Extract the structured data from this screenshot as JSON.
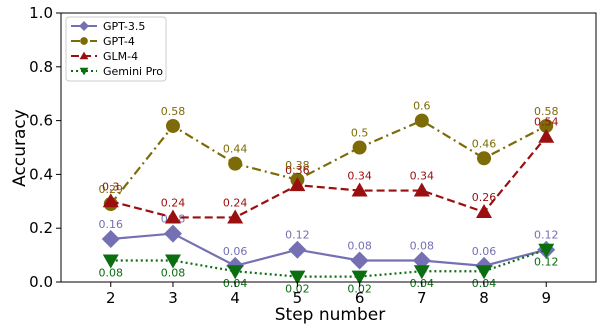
{
  "chart_data": {
    "type": "line",
    "title": "",
    "xlabel": "Step number",
    "ylabel": "Accuracy",
    "x": [
      2,
      3,
      4,
      5,
      6,
      7,
      8,
      9
    ],
    "xlim": [
      1.2,
      9.8
    ],
    "ylim": [
      0.0,
      1.0
    ],
    "yticks": [
      0.0,
      0.2,
      0.4,
      0.6,
      0.8,
      1.0
    ],
    "ytick_labels": [
      "0.0",
      "0.2",
      "0.4",
      "0.6",
      "0.8",
      "1.0"
    ],
    "grid": false,
    "legend_position": "top-left",
    "series": [
      {
        "name": "GPT-3.5",
        "values": [
          0.16,
          0.18,
          0.06,
          0.12,
          0.08,
          0.08,
          0.06,
          0.12
        ],
        "labels": [
          "0.16",
          "0.18",
          "0.06",
          "0.12",
          "0.08",
          "0.08",
          "0.06",
          "0.12"
        ],
        "color": "#7570b3",
        "line_style": "solid",
        "marker": "diamond",
        "label_position": "above"
      },
      {
        "name": "GPT-4",
        "values": [
          0.29,
          0.58,
          0.44,
          0.38,
          0.5,
          0.6,
          0.46,
          0.58
        ],
        "labels": [
          "0.29",
          "0.58",
          "0.44",
          "0.38",
          "0.5",
          "0.6",
          "0.46",
          "0.58"
        ],
        "color": "#7d6b08",
        "line_style": "dashdot",
        "marker": "circle",
        "label_position": "above"
      },
      {
        "name": "GLM-4",
        "values": [
          0.3,
          0.24,
          0.24,
          0.36,
          0.34,
          0.34,
          0.26,
          0.54
        ],
        "labels": [
          "0.3",
          "0.24",
          "0.24",
          "0.36",
          "0.34",
          "0.34",
          "0.26",
          "0.54"
        ],
        "color": "#9a0f0f",
        "line_style": "dashed",
        "marker": "triangle-up",
        "label_position": "above"
      },
      {
        "name": "Gemini Pro",
        "values": [
          0.08,
          0.08,
          0.04,
          0.02,
          0.02,
          0.04,
          0.04,
          0.12
        ],
        "labels": [
          "0.08",
          "0.08",
          "0.04",
          "0.02",
          "0.02",
          "0.04",
          "0.04",
          "0.12"
        ],
        "color": "#0b6e10",
        "line_style": "dotted",
        "marker": "triangle-down",
        "label_position": "below"
      }
    ]
  }
}
